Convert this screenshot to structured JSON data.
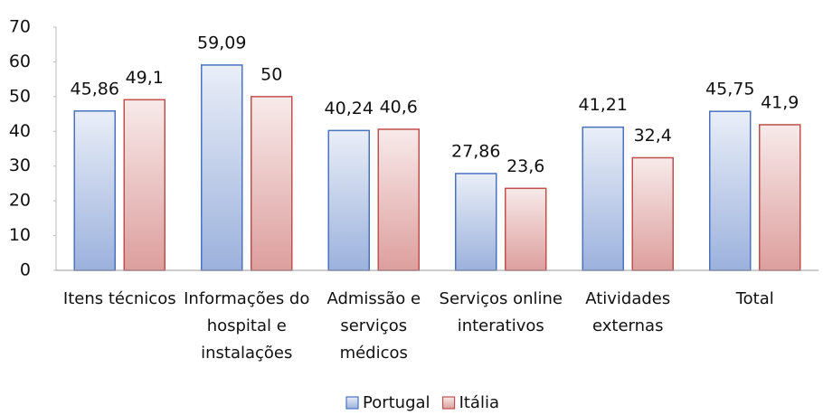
{
  "chart_data": {
    "type": "bar",
    "categories": [
      "Itens técnicos",
      "Informações do hospital e instalações",
      "Admissão e serviços médicos",
      "Serviços online interativos",
      "Atividades externas",
      "Total"
    ],
    "series": [
      {
        "name": "Portugal",
        "color": "#4a72c0",
        "values": [
          45.86,
          59.09,
          40.24,
          27.86,
          41.21,
          45.75
        ],
        "value_labels": [
          "45,86",
          "59,09",
          "40,24",
          "27,86",
          "41,21",
          "45,75"
        ]
      },
      {
        "name": "Itália",
        "color": "#c0504d",
        "values": [
          49.1,
          50,
          40.6,
          23.6,
          32.4,
          41.9
        ],
        "value_labels": [
          "49,1",
          "50",
          "40,6",
          "23,6",
          "32,4",
          "41,9"
        ]
      }
    ],
    "ylim": [
      0,
      70
    ],
    "yticks": [
      0,
      10,
      20,
      30,
      40,
      50,
      60,
      70
    ],
    "grid": false,
    "legend": "bottom"
  }
}
